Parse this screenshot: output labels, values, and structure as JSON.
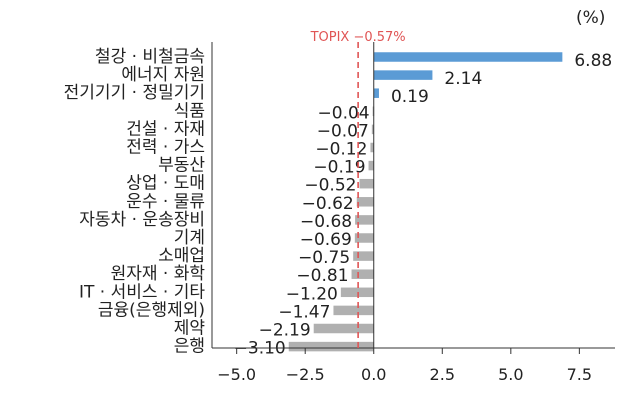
{
  "chart_data": {
    "type": "bar",
    "orientation": "horizontal",
    "unit_label": "(%)",
    "categories": [
      "철강 · 비철금속",
      "에너지 자원",
      "전기기기 · 정밀기기",
      "식품",
      "건설 · 자재",
      "전력 · 가스",
      "부동산",
      "상업 · 도매",
      "운수 · 물류",
      "자동차 · 운송장비",
      "기계",
      "소매업",
      "원자재 · 화학",
      "IT · 서비스 · 기타",
      "금융(은행제외)",
      "제약",
      "은행"
    ],
    "values": [
      6.88,
      2.14,
      0.19,
      -0.04,
      -0.07,
      -0.12,
      -0.19,
      -0.52,
      -0.62,
      -0.68,
      -0.69,
      -0.75,
      -0.81,
      -1.2,
      -1.47,
      -2.19,
      -3.1
    ],
    "value_labels": [
      "6.88",
      "2.14",
      "0.19",
      "−0.04",
      "−0.07",
      "−0.12",
      "−0.19",
      "−0.52",
      "−0.62",
      "−0.68",
      "−0.69",
      "−0.75",
      "−0.81",
      "−1.20",
      "−1.47",
      "−2.19",
      "−3.10"
    ],
    "reference_line": {
      "label": "TOPIX −0.57%",
      "value": -0.57,
      "color": "#e05555"
    },
    "xlim": [
      -5.9,
      8.8
    ],
    "xticks": [
      -5.0,
      -2.5,
      0.0,
      2.5,
      5.0,
      7.5
    ],
    "xtick_labels": [
      "−5.0",
      "−2.5",
      "0.0",
      "2.5",
      "5.0",
      "7.5"
    ],
    "colors": {
      "positive": "#5b9bd5",
      "negative": "#b0b0b0"
    },
    "grid": false
  }
}
